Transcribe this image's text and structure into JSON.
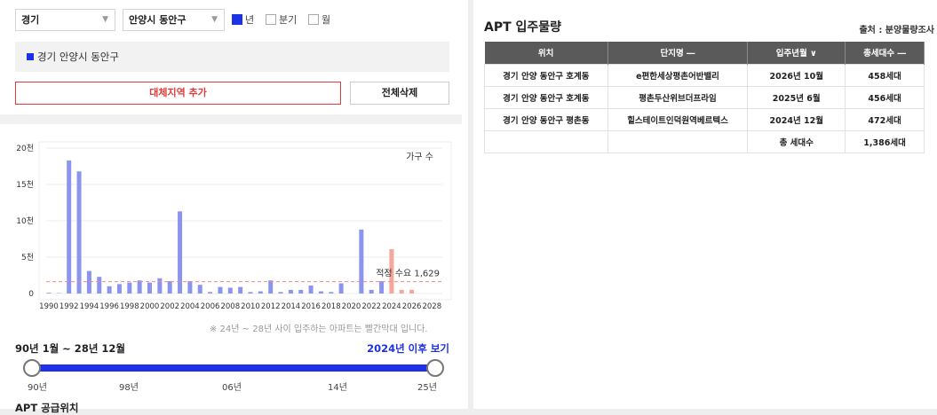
{
  "filters": {
    "province": "경기",
    "district": "안양시 동안구",
    "periods": [
      {
        "label": "년",
        "checked": true
      },
      {
        "label": "분기",
        "checked": false
      },
      {
        "label": "월",
        "checked": false
      }
    ]
  },
  "region_label": "경기 안양시 동안구",
  "buttons": {
    "add_region": "대체지역 추가",
    "delete_all": "전체삭제"
  },
  "chart_data": {
    "type": "bar",
    "y_unit_label": "가구 수",
    "y_ticks": [
      "0",
      "5천",
      "10천",
      "15천",
      "20천"
    ],
    "ylim": [
      0,
      20000
    ],
    "x_ticks": [
      "1990",
      "1992",
      "1994",
      "1996",
      "1998",
      "2000",
      "2002",
      "2004",
      "2006",
      "2008",
      "2010",
      "2012",
      "2014",
      "2016",
      "2018",
      "2020",
      "2022",
      "2024",
      "2026",
      "2028"
    ],
    "years": [
      1990,
      1991,
      1992,
      1993,
      1994,
      1995,
      1996,
      1997,
      1998,
      1999,
      2000,
      2001,
      2002,
      2003,
      2004,
      2005,
      2006,
      2007,
      2008,
      2009,
      2010,
      2011,
      2012,
      2013,
      2014,
      2015,
      2016,
      2017,
      2018,
      2019,
      2020,
      2021,
      2022,
      2023,
      2024,
      2025,
      2026
    ],
    "values": [
      100,
      50,
      18300,
      16800,
      3100,
      2300,
      1000,
      1300,
      1500,
      1800,
      1500,
      2100,
      1700,
      11300,
      1700,
      1200,
      200,
      900,
      800,
      900,
      200,
      300,
      1800,
      200,
      500,
      500,
      1100,
      300,
      200,
      1400,
      0,
      8800,
      500,
      1700,
      6100,
      500,
      500
    ],
    "highlight_from_year": 2024,
    "proper_demand": 1629,
    "proper_demand_label": "적정 수요 1,629",
    "colors": {
      "bar": "#8b95ef",
      "future_bar": "#f4a79a",
      "demand_line": "#f08a8a"
    }
  },
  "chart_note": "※ 24년 ~ 28년 사이 입주하는 아파트는 빨간막대 입니다.",
  "range_label": "90년 1월 ~ 28년 12월",
  "after_2024_link": "2024년 이후 보기",
  "slider": {
    "ticks": [
      "90년",
      "98년",
      "06년",
      "14년",
      "25년"
    ],
    "start_fraction": 0,
    "end_fraction": 1
  },
  "section_below": "APT 공급위치",
  "panel": {
    "title": "APT 입주물량",
    "source": "출처 : 분양물량조사",
    "headers": [
      "위치",
      "단지명 ―",
      "입주년월 ∨",
      "총세대수 ―"
    ],
    "rows": [
      [
        "경기 안양 동안구 호계동",
        "e편한세상평촌어반밸리",
        "2026년 10월",
        "458세대"
      ],
      [
        "경기 안양 동안구 호계동",
        "평촌두산위브더프라임",
        "2025년 6월",
        "456세대"
      ],
      [
        "경기 안양 동안구 평촌동",
        "힐스테이트인덕원역베르텍스",
        "2024년 12월",
        "472세대"
      ],
      [
        "",
        "",
        "총 세대수",
        "1,386세대"
      ]
    ]
  }
}
